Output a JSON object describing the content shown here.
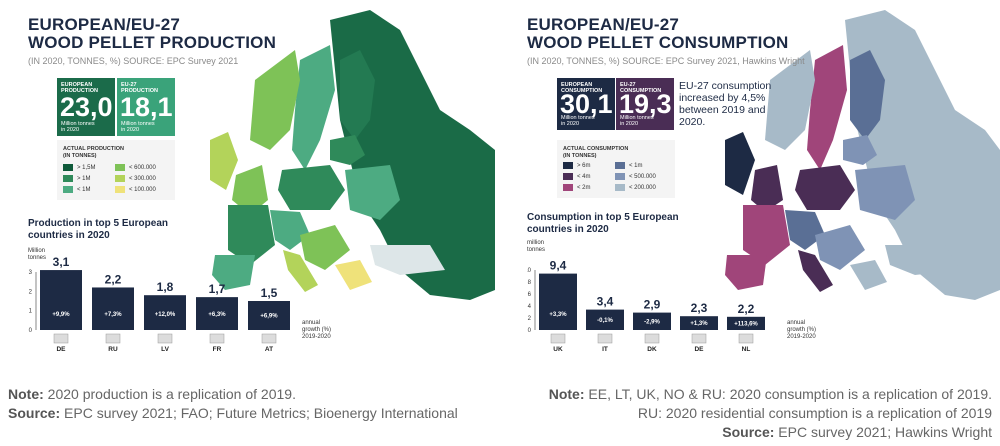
{
  "left": {
    "title_line1": "EUROPEAN/EU-27",
    "title_line2": "WOOD PELLET PRODUCTION",
    "subtitle": "(IN 2020, TONNES, %) SOURCE: EPC Survey 2021",
    "box1": {
      "label_line1": "EUROPEAN",
      "label_line2": "PRODUCTION",
      "value": "23,0",
      "unit_line1": "Million tonnes",
      "unit_line2": "in 2020",
      "color": "#1b6b4a"
    },
    "box2": {
      "label_line1": "EU-27",
      "label_line2": "PRODUCTION",
      "value": "18,1",
      "unit_line1": "Million tonnes",
      "unit_line2": "in 2020",
      "color": "#3aa37a"
    },
    "legend_title_line1": "ACTUAL PRODUCTION",
    "legend_title_line2": "(IN TONNES)",
    "legend": [
      {
        "label": "> 1,5M",
        "color": "#0f5a3a"
      },
      {
        "label": "> 1M",
        "color": "#2f8a5a"
      },
      {
        "label": "< 1M",
        "color": "#4dab82"
      },
      {
        "label": "< 600.000",
        "color": "#7ec257"
      },
      {
        "label": "< 300.000",
        "color": "#b3d35a"
      },
      {
        "label": "< 100.000",
        "color": "#efe27a"
      }
    ],
    "chart_title_line1": "Production in top 5 European",
    "chart_title_line2": "countries in 2020",
    "y_label_line1": "Million",
    "y_label_line2": "tonnes",
    "growth_label_line1": "annual",
    "growth_label_line2": "growth (%)",
    "growth_label_line3": "2019-2020",
    "note_label": "Note:",
    "note_text": " 2020 production is a replication of 2019.",
    "source_label": "Source:",
    "source_text": " EPC survey 2021; FAO; Future Metrics; Bioenergy International"
  },
  "right": {
    "title_line1": "EUROPEAN/EU-27",
    "title_line2": "WOOD PELLET CONSUMPTION",
    "subtitle": "(IN 2020, TONNES, %) SOURCE: EPC Survey 2021, Hawkins Wright",
    "box1": {
      "label_line1": "EUROPEAN",
      "label_line2": "CONSUMPTION",
      "value": "30,1",
      "unit_line1": "Million tonnes",
      "unit_line2": "in 2020",
      "color": "#1d2a44"
    },
    "box2": {
      "label_line1": "EU-27",
      "label_line2": "CONSUMPTION",
      "value": "19,3",
      "unit_line1": "Million tonnes",
      "unit_line2": "in 2020",
      "color": "#4a2d55"
    },
    "callout_line1": "EU-27 consumption",
    "callout_line2": "increased by 4,5%",
    "callout_line3": "between 2019 and",
    "callout_line4": "2020.",
    "legend_title_line1": "ACTUAL CONSUMPTION",
    "legend_title_line2": "(IN TONNES)",
    "legend": [
      {
        "label": "> 6m",
        "color": "#1d2a44"
      },
      {
        "label": "< 4m",
        "color": "#4a2d55"
      },
      {
        "label": "< 2m",
        "color": "#a0457a"
      },
      {
        "label": "< 1m",
        "color": "#5a6f95"
      },
      {
        "label": "< 500.000",
        "color": "#7f93b5"
      },
      {
        "label": "< 200.000",
        "color": "#a7bac8"
      }
    ],
    "chart_title_line1": "Consumption in top 5 European",
    "chart_title_line2": "countries in 2020",
    "y_label_line1": "million",
    "y_label_line2": "tonnes",
    "growth_label_line1": "annual",
    "growth_label_line2": "growth (%)",
    "growth_label_line3": "2019-2020",
    "note_label": "Note:",
    "note_text": " EE, LT, UK, NO & RU: 2020 consumption is a replication of 2019.",
    "note2_text": "RU: 2020 residential consumption is a replication of 2019",
    "source_label": "Source:",
    "source_text": " EPC survey 2021; Hawkins Wright"
  },
  "chart_data": [
    {
      "type": "bar",
      "title": "Production in top 5 European countries in 2020",
      "ylabel": "Million tonnes",
      "categories": [
        "DE",
        "RU",
        "LV",
        "FR",
        "AT"
      ],
      "values": [
        3.1,
        2.2,
        1.8,
        1.7,
        1.5
      ],
      "value_labels": [
        "3,1",
        "2,2",
        "1,8",
        "1,7",
        "1,5"
      ],
      "growth_labels": [
        "+9,9%",
        "+7,3%",
        "+12,0%",
        "+6,3%",
        "+6,9%"
      ],
      "yticks": [
        "3",
        "2",
        "1",
        "0"
      ],
      "ylim": [
        0,
        3
      ],
      "bar_color": "#1d2a44"
    },
    {
      "type": "bar",
      "title": "Consumption in top 5 European countries in 2020",
      "ylabel": "million tonnes",
      "categories": [
        "UK",
        "IT",
        "DK",
        "DE",
        "NL"
      ],
      "values": [
        9.4,
        3.4,
        2.9,
        2.3,
        2.2
      ],
      "value_labels": [
        "9,4",
        "3,4",
        "2,9",
        "2,3",
        "2,2"
      ],
      "growth_labels": [
        "+3,3%",
        "-0,1%",
        "-2,9%",
        "+1,3%",
        "+113,6%"
      ],
      "yticks": [
        "10",
        "8",
        "6",
        "4",
        "2",
        "0"
      ],
      "ylim": [
        0,
        10
      ],
      "bar_color": "#1d2a44"
    }
  ]
}
